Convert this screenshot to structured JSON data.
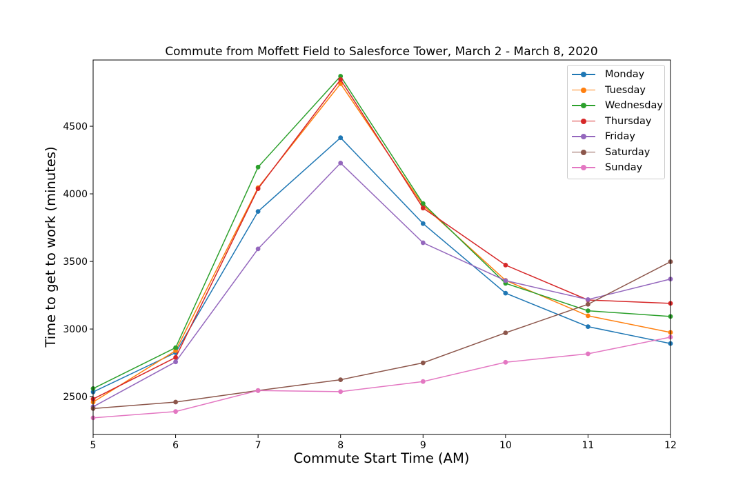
{
  "chart_data": {
    "type": "line",
    "title": "Commute from Moffett Field to Salesforce Tower, March 2 - March 8, 2020",
    "xlabel": "Commute Start Time (AM)",
    "ylabel": "Time to get to work (minutes)",
    "x": [
      5,
      6,
      7,
      8,
      9,
      10,
      11,
      12
    ],
    "xlim": [
      5,
      12
    ],
    "ylim": [
      2220,
      4990
    ],
    "xticks": [
      "5",
      "6",
      "7",
      "8",
      "9",
      "10",
      "11",
      "12"
    ],
    "yticks": [
      2500,
      3000,
      3500,
      4000,
      4500
    ],
    "grid": false,
    "legend_position": "upper-right",
    "series": [
      {
        "name": "Monday",
        "color": "#1f77b4",
        "values": [
          2535,
          2825,
          3870,
          4415,
          3780,
          3265,
          3018,
          2893
        ]
      },
      {
        "name": "Tuesday",
        "color": "#ff7f0e",
        "values": [
          2460,
          2840,
          4045,
          4815,
          3915,
          3360,
          3098,
          2975
        ]
      },
      {
        "name": "Wednesday",
        "color": "#2ca02c",
        "values": [
          2560,
          2862,
          4198,
          4870,
          3928,
          3338,
          3135,
          3093
        ]
      },
      {
        "name": "Thursday",
        "color": "#d62728",
        "values": [
          2482,
          2790,
          4038,
          4845,
          3895,
          3473,
          3215,
          3190
        ]
      },
      {
        "name": "Friday",
        "color": "#9467bd",
        "values": [
          2425,
          2757,
          3593,
          4228,
          3638,
          3358,
          3218,
          3370
        ]
      },
      {
        "name": "Saturday",
        "color": "#8c564b",
        "values": [
          2412,
          2460,
          2545,
          2625,
          2750,
          2972,
          3183,
          3498
        ]
      },
      {
        "name": "Sunday",
        "color": "#e377c2",
        "values": [
          2343,
          2390,
          2545,
          2537,
          2612,
          2754,
          2817,
          2940
        ]
      }
    ]
  }
}
